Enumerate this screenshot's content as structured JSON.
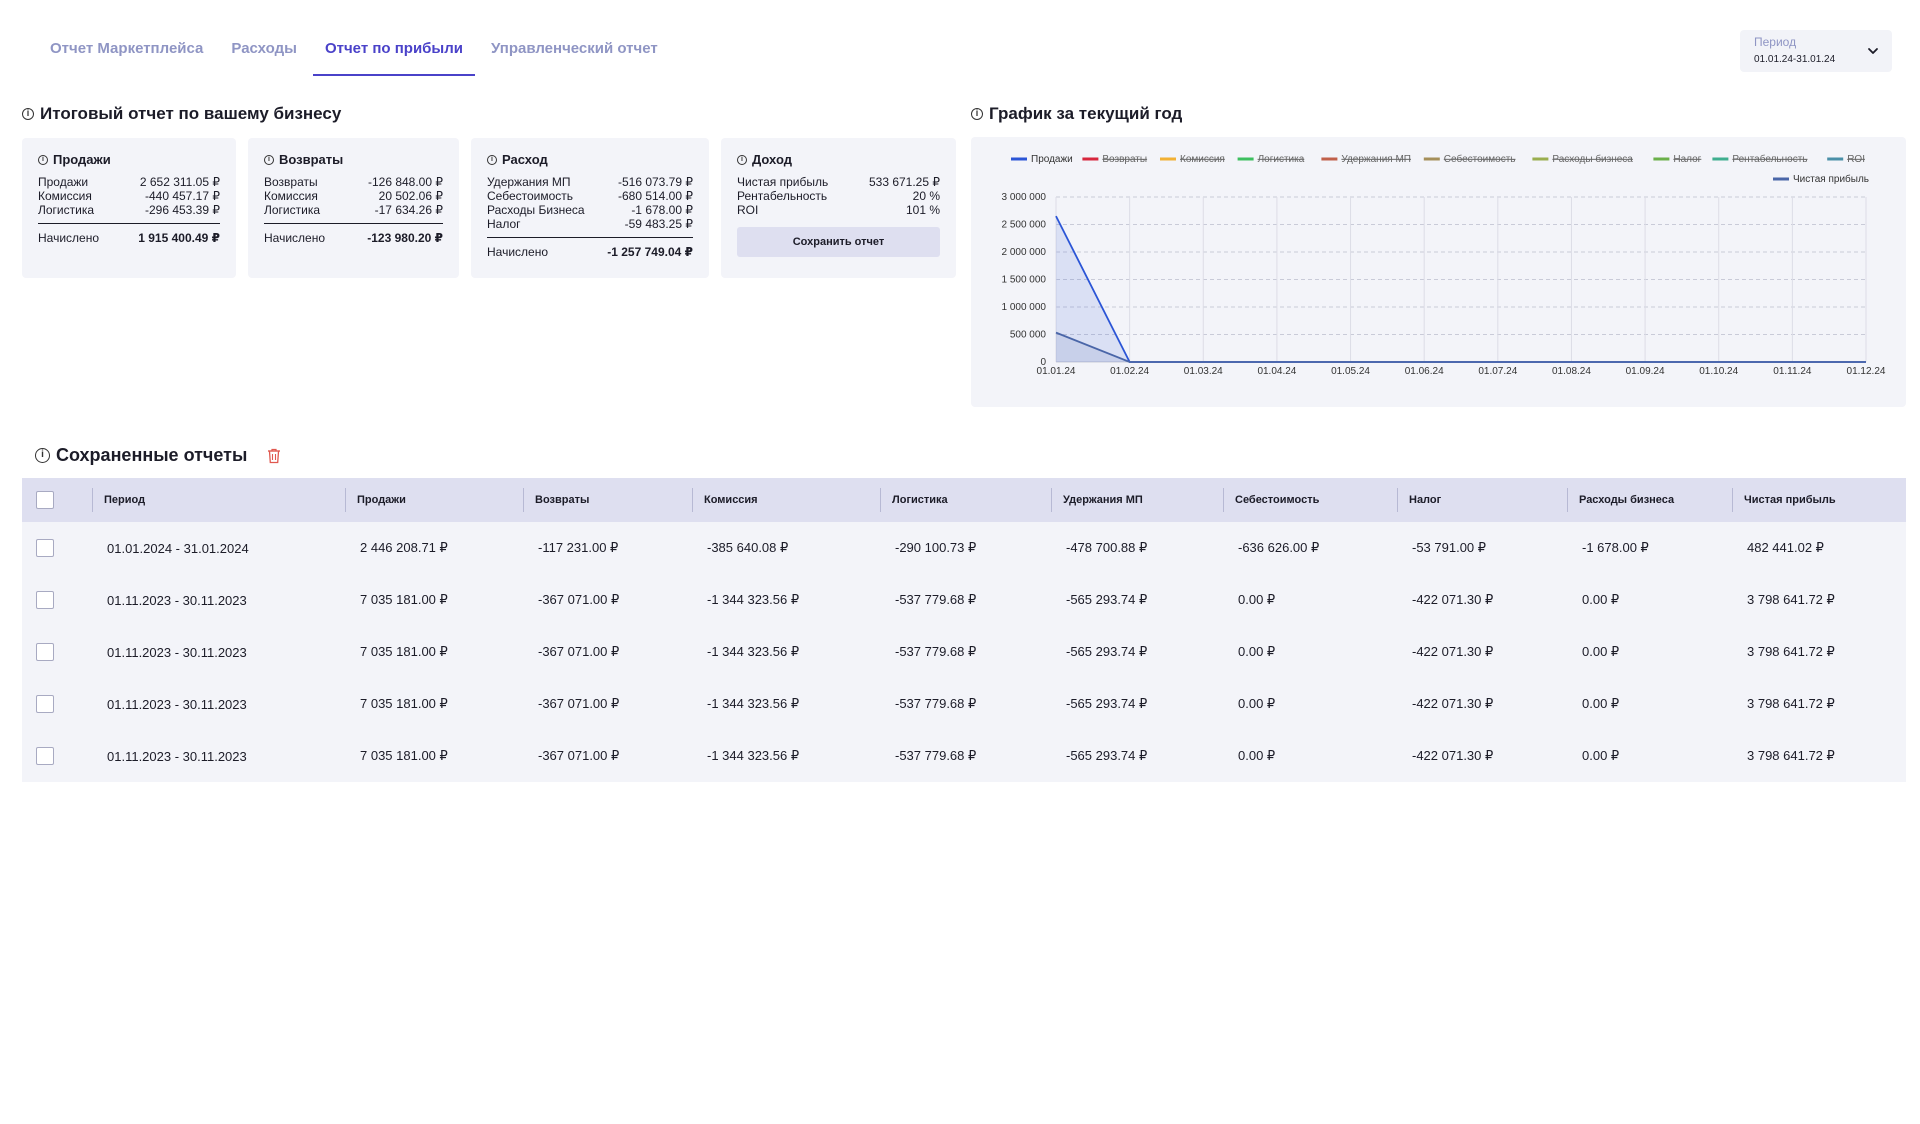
{
  "tabs": [
    {
      "label": "Отчет Маркетплейса",
      "active": false
    },
    {
      "label": "Расходы",
      "active": false
    },
    {
      "label": "Отчет по прибыли",
      "active": true
    },
    {
      "label": "Управленческий отчет",
      "active": false
    }
  ],
  "period": {
    "label": "Период",
    "value": "01.01.24-31.01.24"
  },
  "summary": {
    "title": "Итоговый отчет по вашему бизнесу",
    "sales": {
      "title": "Продажи",
      "rows": [
        {
          "label": "Продажи",
          "value": "2 652 311.05 ₽"
        },
        {
          "label": "Комиссия",
          "value": "-440 457.17 ₽"
        },
        {
          "label": "Логистика",
          "value": "-296 453.39 ₽"
        }
      ],
      "total_label": "Начислено",
      "total_value": "1 915 400.49 ₽"
    },
    "returns": {
      "title": "Возвраты",
      "rows": [
        {
          "label": "Возвраты",
          "value": "-126 848.00 ₽"
        },
        {
          "label": "Комиссия",
          "value": "20 502.06 ₽"
        },
        {
          "label": "Логистика",
          "value": "-17 634.26 ₽"
        }
      ],
      "total_label": "Начислено",
      "total_value": "-123 980.20 ₽"
    },
    "expense": {
      "title": "Расход",
      "rows": [
        {
          "label": "Удержания МП",
          "value": "-516 073.79 ₽"
        },
        {
          "label": "Себестоимость",
          "value": "-680 514.00 ₽"
        },
        {
          "label": "Расходы Бизнеса",
          "value": "-1 678.00 ₽"
        },
        {
          "label": "Налог",
          "value": "-59 483.25 ₽"
        }
      ],
      "total_label": "Начислено",
      "total_value": "-1 257 749.04 ₽"
    },
    "income": {
      "title": "Доход",
      "rows": [
        {
          "label": "Чистая прибыль",
          "value": "533 671.25 ₽"
        },
        {
          "label": "Рентабельность",
          "value": "20 %"
        },
        {
          "label": "ROI",
          "value": "101 %"
        }
      ],
      "save_label": "Сохранить отчет"
    }
  },
  "chart_title": "График за текущий год",
  "chart_data": {
    "type": "line",
    "title": "График за текущий год",
    "x": [
      "01.01.24",
      "01.02.24",
      "01.03.24",
      "01.04.24",
      "01.05.24",
      "01.06.24",
      "01.07.24",
      "01.08.24",
      "01.09.24",
      "01.10.24",
      "01.11.24",
      "01.12.24"
    ],
    "y_ticks": [
      "0",
      "500 000",
      "1 000 000",
      "1 500 000",
      "2 000 000",
      "2 500 000",
      "3 000 000"
    ],
    "ylim": [
      0,
      3000000
    ],
    "grid": true,
    "legend_position": "top",
    "legend": [
      {
        "name": "Продажи",
        "color": "#2b55d6",
        "hidden": false
      },
      {
        "name": "Возвраты",
        "color": "#d7263d",
        "hidden": true
      },
      {
        "name": "Комиссия",
        "color": "#f2b134",
        "hidden": true
      },
      {
        "name": "Логистика",
        "color": "#3dbf5f",
        "hidden": true
      },
      {
        "name": "Удержания МП",
        "color": "#c0604a",
        "hidden": true
      },
      {
        "name": "Себестоимость",
        "color": "#a58f5a",
        "hidden": true
      },
      {
        "name": "Расходы бизнеса",
        "color": "#9aae4f",
        "hidden": true
      },
      {
        "name": "Налог",
        "color": "#6bb04a",
        "hidden": true
      },
      {
        "name": "Рентабельность",
        "color": "#3fae8f",
        "hidden": true
      },
      {
        "name": "ROI",
        "color": "#4a8fa8",
        "hidden": true
      },
      {
        "name": "Чистая прибыль",
        "color": "#4a66a8",
        "hidden": false
      }
    ],
    "series": [
      {
        "name": "Продажи",
        "color": "#2b55d6",
        "values": [
          2652311,
          0,
          0,
          0,
          0,
          0,
          0,
          0,
          0,
          0,
          0,
          0
        ]
      },
      {
        "name": "Чистая прибыль",
        "color": "#4a66a8",
        "values": [
          533671,
          0,
          0,
          0,
          0,
          0,
          0,
          0,
          0,
          0,
          0,
          0
        ]
      }
    ]
  },
  "saved": {
    "title": "Сохраненные отчеты",
    "columns": [
      "Период",
      "Продажи",
      "Возвраты",
      "Комиссия",
      "Логистика",
      "Удержания МП",
      "Себестоимость",
      "Налог",
      "Расходы бизнеса",
      "Чистая прибыль"
    ],
    "rows": [
      [
        "01.01.2024 - 31.01.2024",
        "2 446 208.71 ₽",
        "-117 231.00 ₽",
        "-385 640.08 ₽",
        "-290 100.73 ₽",
        "-478 700.88 ₽",
        "-636 626.00 ₽",
        "-53 791.00 ₽",
        "-1 678.00 ₽",
        "482 441.02 ₽"
      ],
      [
        "01.11.2023 - 30.11.2023",
        "7 035 181.00 ₽",
        "-367 071.00 ₽",
        "-1 344 323.56 ₽",
        "-537 779.68 ₽",
        "-565 293.74 ₽",
        "0.00 ₽",
        "-422 071.30 ₽",
        "0.00 ₽",
        "3 798 641.72 ₽"
      ],
      [
        "01.11.2023 - 30.11.2023",
        "7 035 181.00 ₽",
        "-367 071.00 ₽",
        "-1 344 323.56 ₽",
        "-537 779.68 ₽",
        "-565 293.74 ₽",
        "0.00 ₽",
        "-422 071.30 ₽",
        "0.00 ₽",
        "3 798 641.72 ₽"
      ],
      [
        "01.11.2023 - 30.11.2023",
        "7 035 181.00 ₽",
        "-367 071.00 ₽",
        "-1 344 323.56 ₽",
        "-537 779.68 ₽",
        "-565 293.74 ₽",
        "0.00 ₽",
        "-422 071.30 ₽",
        "0.00 ₽",
        "3 798 641.72 ₽"
      ],
      [
        "01.11.2023 - 30.11.2023",
        "7 035 181.00 ₽",
        "-367 071.00 ₽",
        "-1 344 323.56 ₽",
        "-537 779.68 ₽",
        "-565 293.74 ₽",
        "0.00 ₽",
        "-422 071.30 ₽",
        "0.00 ₽",
        "3 798 641.72 ₽"
      ]
    ]
  }
}
